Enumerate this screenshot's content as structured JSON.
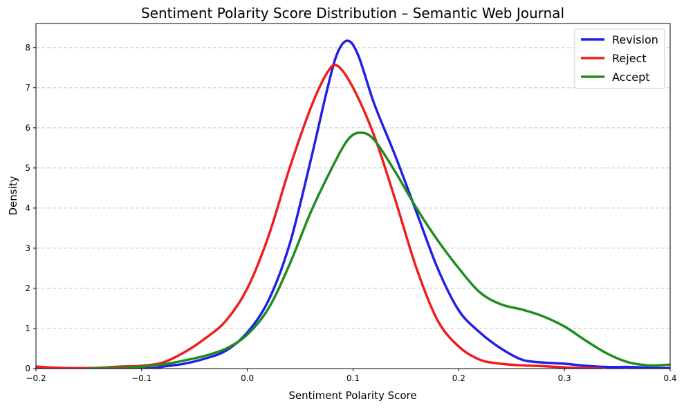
{
  "chart_data": {
    "type": "line",
    "title": "Sentiment Polarity Score Distribution – Semantic Web Journal",
    "xlabel": "Sentiment Polarity Score",
    "ylabel": "Density",
    "xlim": [
      -0.2,
      0.4
    ],
    "ylim": [
      0,
      8.6
    ],
    "x_ticks": [
      -0.2,
      -0.1,
      0.0,
      0.1,
      0.2,
      0.3,
      0.4
    ],
    "x_tick_labels": [
      "−0.2",
      "−0.1",
      "0.0",
      "0.1",
      "0.2",
      "0.3",
      "0.4"
    ],
    "y_ticks": [
      0,
      1,
      2,
      3,
      4,
      5,
      6,
      7,
      8
    ],
    "y_tick_labels": [
      "0",
      "1",
      "2",
      "3",
      "4",
      "5",
      "6",
      "7",
      "8"
    ],
    "grid": "horizontal dashed",
    "legend_position": "top-right",
    "series": [
      {
        "name": "Revision",
        "color": "#1f1fe8",
        "points": [
          [
            -0.2,
            0.0
          ],
          [
            -0.1,
            0.0
          ],
          [
            -0.08,
            0.05
          ],
          [
            -0.06,
            0.12
          ],
          [
            -0.04,
            0.25
          ],
          [
            -0.02,
            0.45
          ],
          [
            0.0,
            0.9
          ],
          [
            0.02,
            1.7
          ],
          [
            0.04,
            3.1
          ],
          [
            0.06,
            5.2
          ],
          [
            0.075,
            6.9
          ],
          [
            0.085,
            7.85
          ],
          [
            0.095,
            8.17
          ],
          [
            0.105,
            7.8
          ],
          [
            0.12,
            6.6
          ],
          [
            0.14,
            5.3
          ],
          [
            0.16,
            3.9
          ],
          [
            0.18,
            2.5
          ],
          [
            0.2,
            1.45
          ],
          [
            0.22,
            0.9
          ],
          [
            0.24,
            0.5
          ],
          [
            0.26,
            0.22
          ],
          [
            0.28,
            0.15
          ],
          [
            0.3,
            0.12
          ],
          [
            0.32,
            0.07
          ],
          [
            0.34,
            0.04
          ],
          [
            0.36,
            0.04
          ],
          [
            0.38,
            0.02
          ],
          [
            0.4,
            0.01
          ]
        ]
      },
      {
        "name": "Reject",
        "color": "#f01c1c",
        "points": [
          [
            -0.2,
            0.05
          ],
          [
            -0.18,
            0.02
          ],
          [
            -0.16,
            0.01
          ],
          [
            -0.14,
            0.02
          ],
          [
            -0.12,
            0.05
          ],
          [
            -0.1,
            0.07
          ],
          [
            -0.08,
            0.15
          ],
          [
            -0.06,
            0.4
          ],
          [
            -0.04,
            0.75
          ],
          [
            -0.02,
            1.2
          ],
          [
            0.0,
            2.0
          ],
          [
            0.02,
            3.3
          ],
          [
            0.04,
            5.0
          ],
          [
            0.06,
            6.5
          ],
          [
            0.075,
            7.35
          ],
          [
            0.085,
            7.55
          ],
          [
            0.1,
            7.0
          ],
          [
            0.12,
            5.8
          ],
          [
            0.14,
            4.2
          ],
          [
            0.16,
            2.5
          ],
          [
            0.18,
            1.2
          ],
          [
            0.2,
            0.55
          ],
          [
            0.22,
            0.22
          ],
          [
            0.24,
            0.12
          ],
          [
            0.26,
            0.08
          ],
          [
            0.28,
            0.06
          ],
          [
            0.3,
            0.03
          ],
          [
            0.32,
            0.01
          ],
          [
            0.335,
            0.0
          ]
        ]
      },
      {
        "name": "Accept",
        "color": "#1e8c1e",
        "points": [
          [
            -0.15,
            0.0
          ],
          [
            -0.12,
            0.02
          ],
          [
            -0.1,
            0.05
          ],
          [
            -0.08,
            0.1
          ],
          [
            -0.06,
            0.2
          ],
          [
            -0.04,
            0.32
          ],
          [
            -0.02,
            0.5
          ],
          [
            0.0,
            0.85
          ],
          [
            0.02,
            1.5
          ],
          [
            0.04,
            2.6
          ],
          [
            0.06,
            3.9
          ],
          [
            0.08,
            5.0
          ],
          [
            0.095,
            5.7
          ],
          [
            0.107,
            5.88
          ],
          [
            0.12,
            5.7
          ],
          [
            0.14,
            4.9
          ],
          [
            0.16,
            4.0
          ],
          [
            0.18,
            3.2
          ],
          [
            0.2,
            2.5
          ],
          [
            0.22,
            1.9
          ],
          [
            0.24,
            1.6
          ],
          [
            0.26,
            1.47
          ],
          [
            0.28,
            1.3
          ],
          [
            0.3,
            1.05
          ],
          [
            0.32,
            0.7
          ],
          [
            0.34,
            0.38
          ],
          [
            0.36,
            0.16
          ],
          [
            0.38,
            0.08
          ],
          [
            0.4,
            0.1
          ]
        ]
      }
    ]
  }
}
